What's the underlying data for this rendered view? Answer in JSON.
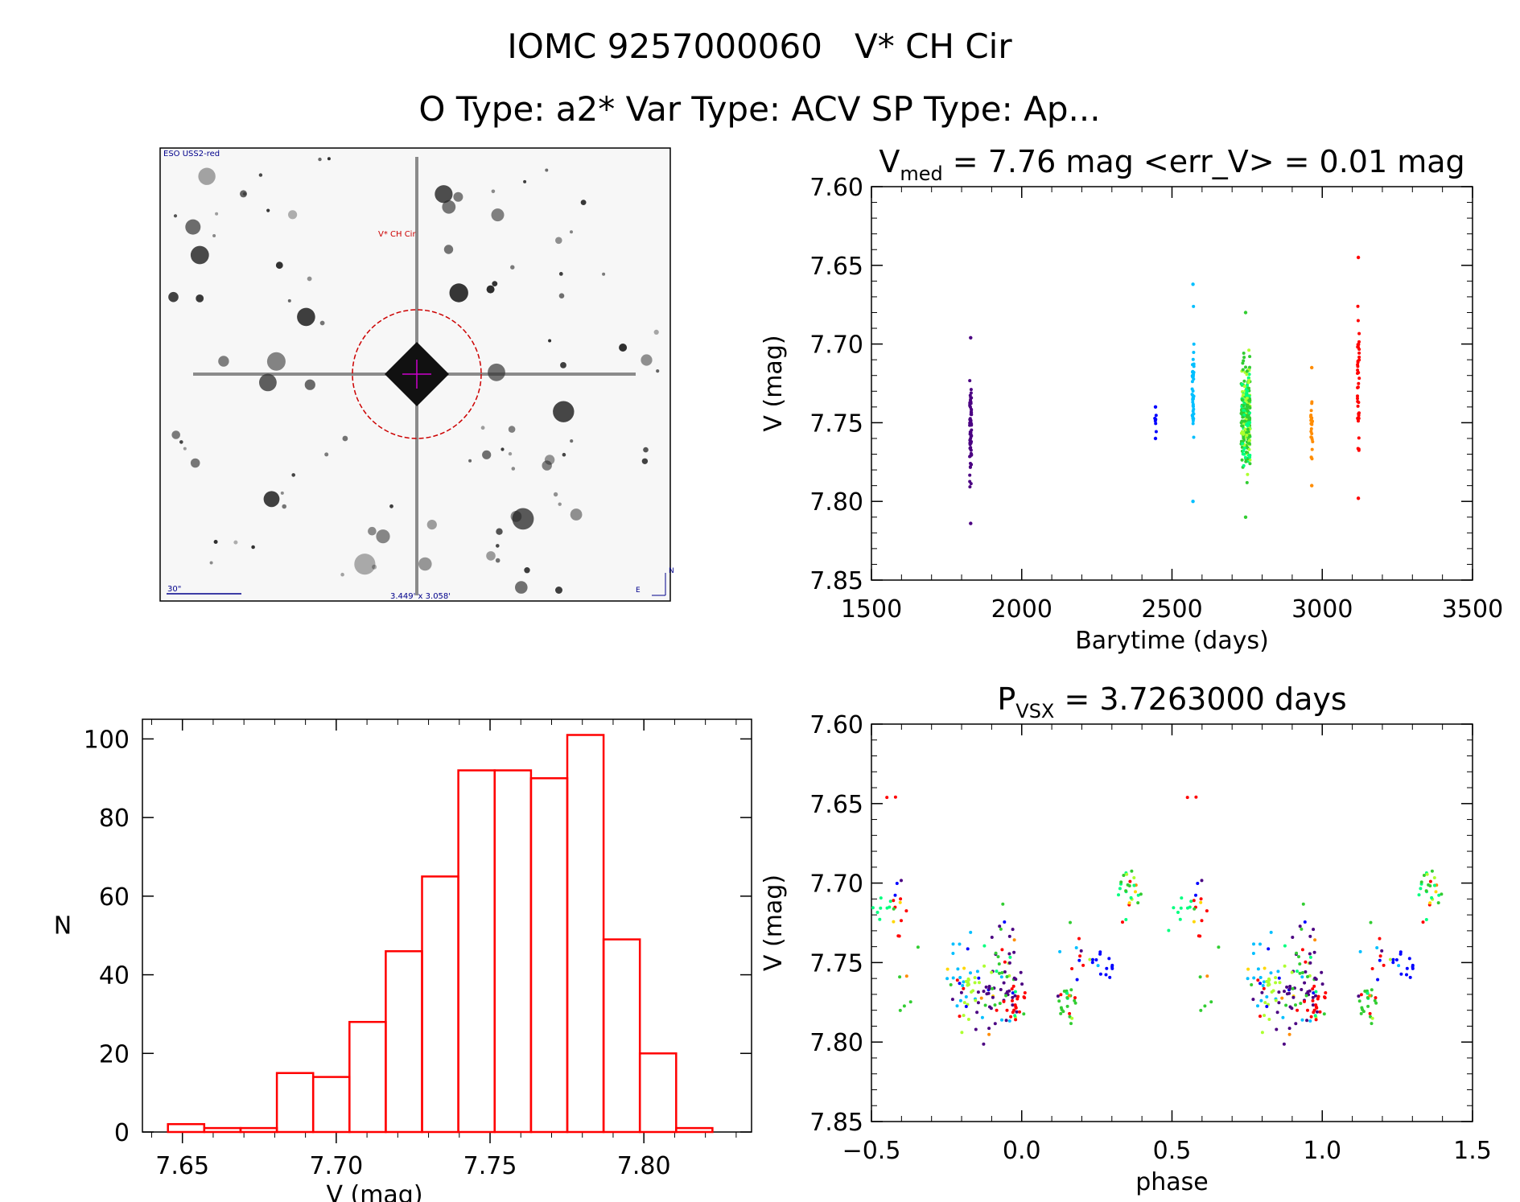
{
  "header": {
    "line1": "IOMC 9257000060   V* CH Cir",
    "line2": "O Type: a2*  Var Type: ACV  SP Type: Ap..."
  },
  "image_panel": {
    "survey_label": "ESO USS2-red",
    "target_label": "V* CH Cir",
    "scale_label": "30\"",
    "size_label": "3.449' x 3.058'",
    "compass_n": "N",
    "compass_e": "E"
  },
  "colors": {
    "hist": "#ff0000",
    "marker": "#cc0000",
    "crosshair": "#cc00cc",
    "survey_text": "#00008b"
  },
  "chart_data": [
    {
      "type": "scatter",
      "id": "lightcurve",
      "title_main": "V",
      "title_sub": "med",
      "title_rest": " = 7.76 mag <err_V> = 0.01 mag",
      "xlabel": "Barytime (days)",
      "ylabel": "V (mag)",
      "xlim": [
        1500,
        3500
      ],
      "ylim": [
        7.85,
        7.6
      ],
      "xticks": [
        "1500",
        "2000",
        "2500",
        "3000",
        "3500"
      ],
      "yticks": [
        "7.60",
        "7.65",
        "7.70",
        "7.75",
        "7.80",
        "7.85"
      ],
      "groups": [
        {
          "name": "season-1",
          "x": 1830,
          "ymin": 7.696,
          "ymax": 7.814,
          "n": 65,
          "color": "#4b0082"
        },
        {
          "name": "season-2",
          "x": 2445,
          "ymin": 7.74,
          "ymax": 7.76,
          "n": 6,
          "color": "#0000ff"
        },
        {
          "name": "season-3",
          "x": 2570,
          "ymin": 7.662,
          "ymax": 7.8,
          "n": 45,
          "color": "#00bfff"
        },
        {
          "name": "season-4",
          "x": 2745,
          "ymin": 7.68,
          "ymax": 7.81,
          "n": 230,
          "color": "#32cd32"
        },
        {
          "name": "season-5",
          "x": 2965,
          "ymin": 7.715,
          "ymax": 7.79,
          "n": 24,
          "color": "#ff8c00"
        },
        {
          "name": "season-6",
          "x": 3120,
          "ymin": 7.645,
          "ymax": 7.798,
          "n": 40,
          "color": "#ff0000"
        }
      ]
    },
    {
      "type": "bar",
      "id": "histogram",
      "xlabel": "V (mag)",
      "ylabel": "N",
      "xlim": [
        7.637,
        7.835
      ],
      "ylim": [
        0,
        105
      ],
      "xticks": [
        "7.65",
        "7.70",
        "7.75",
        "7.80"
      ],
      "yticks": [
        "0",
        "20",
        "40",
        "60",
        "80",
        "100"
      ],
      "bin_width": 0.0118,
      "bin_left": [
        7.6453,
        7.6571,
        7.6689,
        7.6807,
        7.6925,
        7.7043,
        7.7161,
        7.7279,
        7.7397,
        7.7515,
        7.7633,
        7.7751,
        7.7869,
        7.7987,
        7.8105
      ],
      "values": [
        2,
        1,
        1,
        15,
        14,
        28,
        46,
        65,
        92,
        92,
        90,
        101,
        49,
        20,
        1
      ]
    },
    {
      "type": "scatter",
      "id": "phased",
      "title_main": "P",
      "title_sub": "VSX",
      "title_rest": " = 3.7263000 days",
      "xlabel": "phase",
      "ylabel": "V (mag)",
      "xlim": [
        -0.5,
        1.5
      ],
      "ylim": [
        7.85,
        7.6
      ],
      "xticks": [
        "−0.5",
        "0.0",
        "0.5",
        "1.0",
        "1.5"
      ],
      "yticks": [
        "7.60",
        "7.65",
        "7.70",
        "7.75",
        "7.80",
        "7.85"
      ],
      "palette": [
        "#4b0082",
        "#0000ff",
        "#00bfff",
        "#00ff7f",
        "#32cd32",
        "#adff2f",
        "#ffd700",
        "#ff8c00",
        "#ff0000"
      ],
      "clusters": [
        {
          "ph": -0.41,
          "v": 7.72,
          "s": 0.025,
          "n": 12,
          "c": 8
        },
        {
          "ph": -0.41,
          "v": 7.645,
          "s": 0.002,
          "n": 2,
          "c": 8
        },
        {
          "ph": -0.47,
          "v": 7.722,
          "s": 0.01,
          "n": 10,
          "c": 3
        },
        {
          "ph": -0.38,
          "v": 7.76,
          "s": 0.03,
          "n": 6,
          "c": 4
        },
        {
          "ph": -0.2,
          "v": 7.76,
          "s": 0.02,
          "n": 25,
          "c": 2
        },
        {
          "ph": -0.18,
          "v": 7.775,
          "s": 0.018,
          "n": 20,
          "c": 5
        },
        {
          "ph": -0.12,
          "v": 7.77,
          "s": 0.025,
          "n": 25,
          "c": 0
        },
        {
          "ph": -0.04,
          "v": 7.76,
          "s": 0.025,
          "n": 30,
          "c": 0
        },
        {
          "ph": -0.02,
          "v": 7.78,
          "s": 0.013,
          "n": 25,
          "c": 8
        },
        {
          "ph": -0.08,
          "v": 7.75,
          "s": 0.03,
          "n": 20,
          "c": 4
        },
        {
          "ph": 0.15,
          "v": 7.775,
          "s": 0.01,
          "n": 22,
          "c": 4
        },
        {
          "ph": 0.18,
          "v": 7.75,
          "s": 0.025,
          "n": 12,
          "c": 8
        },
        {
          "ph": 0.28,
          "v": 7.752,
          "s": 0.008,
          "n": 15,
          "c": 1
        },
        {
          "ph": 0.36,
          "v": 7.715,
          "s": 0.02,
          "n": 15,
          "c": 3
        },
        {
          "ph": 0.37,
          "v": 7.7,
          "s": 0.015,
          "n": 12,
          "c": 4
        }
      ]
    }
  ]
}
